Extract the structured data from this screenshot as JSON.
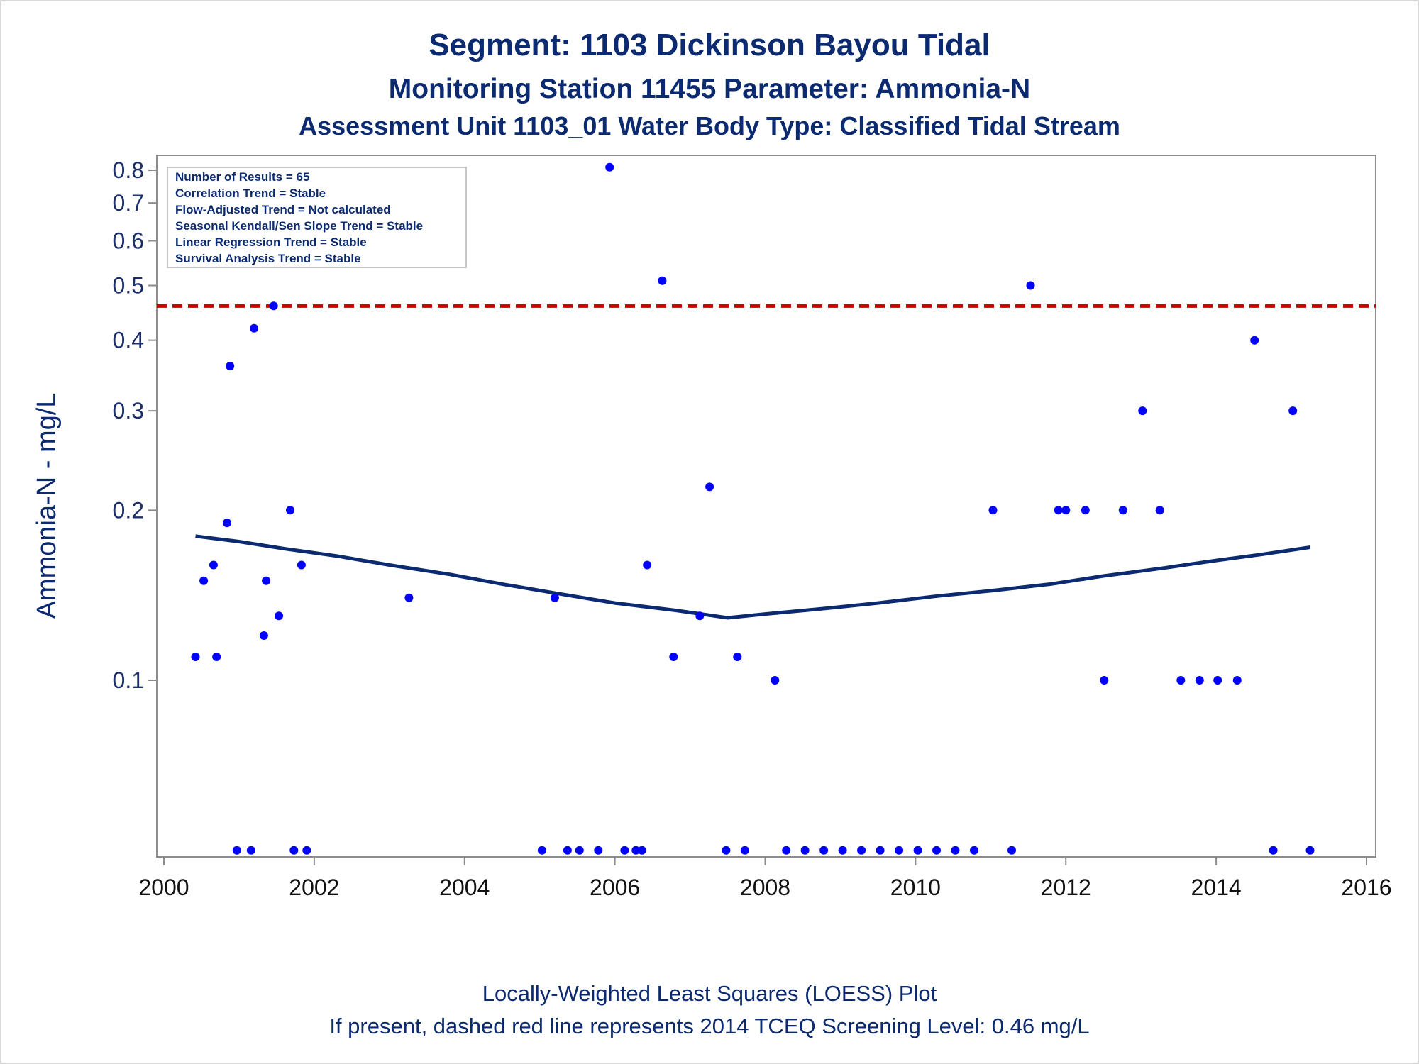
{
  "chart_data": {
    "type": "scatter",
    "title": "Segment: 1103  Dickinson Bayou Tidal",
    "subtitle": "Monitoring Station 11455 Parameter: Ammonia-N",
    "subtitle2": "Assessment Unit 1103_01   Water Body Type: Classified Tidal Stream",
    "ylabel": "Ammonia-N - mg/L",
    "y_scale": "log",
    "x_ticks": [
      "2000",
      "2002",
      "2004",
      "2006",
      "2008",
      "2010",
      "2012",
      "2014",
      "2016"
    ],
    "y_ticks": [
      "0.1",
      "0.2",
      "0.3",
      "0.4",
      "0.5",
      "0.6",
      "0.7",
      "0.8"
    ],
    "xlim": [
      2000,
      2016
    ],
    "ylim": [
      0.05,
      0.81
    ],
    "stats_box": [
      "Number of Results = 65",
      "Correlation Trend = Stable",
      "Flow-Adjusted Trend = Not calculated",
      "Seasonal Kendall/Sen Slope Trend = Stable",
      "Linear Regression Trend = Stable",
      "Survival Analysis Trend = Stable"
    ],
    "screening_level": 0.46,
    "footnote1": "Locally-Weighted Least Squares (LOESS) Plot",
    "footnote2": "If present, dashed red line represents 2014 TCEQ Screening Level: 0.46 mg/L",
    "colors": {
      "points": "#0000ff",
      "loess": "#0b2a6f",
      "screening": "#d00000",
      "text": "#0b2a6f"
    },
    "points": [
      {
        "x": 2000.42,
        "y": 0.11
      },
      {
        "x": 2000.53,
        "y": 0.15
      },
      {
        "x": 2000.66,
        "y": 0.16
      },
      {
        "x": 2000.7,
        "y": 0.11
      },
      {
        "x": 2000.84,
        "y": 0.19
      },
      {
        "x": 2000.88,
        "y": 0.36
      },
      {
        "x": 2000.97,
        "y": 0.05
      },
      {
        "x": 2001.16,
        "y": 0.05
      },
      {
        "x": 2001.2,
        "y": 0.42
      },
      {
        "x": 2001.33,
        "y": 0.12
      },
      {
        "x": 2001.36,
        "y": 0.15
      },
      {
        "x": 2001.46,
        "y": 0.46
      },
      {
        "x": 2001.53,
        "y": 0.13
      },
      {
        "x": 2001.68,
        "y": 0.2
      },
      {
        "x": 2001.73,
        "y": 0.05
      },
      {
        "x": 2001.83,
        "y": 0.16
      },
      {
        "x": 2001.9,
        "y": 0.05
      },
      {
        "x": 2003.26,
        "y": 0.14
      },
      {
        "x": 2005.03,
        "y": 0.05
      },
      {
        "x": 2005.2,
        "y": 0.14
      },
      {
        "x": 2005.37,
        "y": 0.05
      },
      {
        "x": 2005.53,
        "y": 0.05
      },
      {
        "x": 2005.78,
        "y": 0.05
      },
      {
        "x": 2005.93,
        "y": 0.81
      },
      {
        "x": 2006.13,
        "y": 0.05
      },
      {
        "x": 2006.28,
        "y": 0.05
      },
      {
        "x": 2006.36,
        "y": 0.05
      },
      {
        "x": 2006.43,
        "y": 0.16
      },
      {
        "x": 2006.63,
        "y": 0.51
      },
      {
        "x": 2006.78,
        "y": 0.11
      },
      {
        "x": 2007.13,
        "y": 0.13
      },
      {
        "x": 2007.26,
        "y": 0.22
      },
      {
        "x": 2007.48,
        "y": 0.05
      },
      {
        "x": 2007.63,
        "y": 0.11
      },
      {
        "x": 2007.73,
        "y": 0.05
      },
      {
        "x": 2008.13,
        "y": 0.1
      },
      {
        "x": 2008.28,
        "y": 0.05
      },
      {
        "x": 2008.53,
        "y": 0.05
      },
      {
        "x": 2008.78,
        "y": 0.05
      },
      {
        "x": 2009.03,
        "y": 0.05
      },
      {
        "x": 2009.28,
        "y": 0.05
      },
      {
        "x": 2009.53,
        "y": 0.05
      },
      {
        "x": 2009.78,
        "y": 0.05
      },
      {
        "x": 2010.03,
        "y": 0.05
      },
      {
        "x": 2010.28,
        "y": 0.05
      },
      {
        "x": 2010.53,
        "y": 0.05
      },
      {
        "x": 2010.78,
        "y": 0.05
      },
      {
        "x": 2011.03,
        "y": 0.2
      },
      {
        "x": 2011.28,
        "y": 0.05
      },
      {
        "x": 2011.53,
        "y": 0.5
      },
      {
        "x": 2011.9,
        "y": 0.2
      },
      {
        "x": 2012.0,
        "y": 0.2
      },
      {
        "x": 2012.26,
        "y": 0.2
      },
      {
        "x": 2012.51,
        "y": 0.1
      },
      {
        "x": 2012.76,
        "y": 0.2
      },
      {
        "x": 2013.02,
        "y": 0.3
      },
      {
        "x": 2013.25,
        "y": 0.2
      },
      {
        "x": 2013.53,
        "y": 0.1
      },
      {
        "x": 2013.78,
        "y": 0.1
      },
      {
        "x": 2014.02,
        "y": 0.1
      },
      {
        "x": 2014.28,
        "y": 0.1
      },
      {
        "x": 2014.51,
        "y": 0.4
      },
      {
        "x": 2014.76,
        "y": 0.05
      },
      {
        "x": 2015.02,
        "y": 0.3
      },
      {
        "x": 2015.25,
        "y": 0.05
      }
    ],
    "loess": [
      {
        "x": 2000.42,
        "y": 0.18
      },
      {
        "x": 2001.0,
        "y": 0.176
      },
      {
        "x": 2001.6,
        "y": 0.171
      },
      {
        "x": 2002.3,
        "y": 0.166
      },
      {
        "x": 2003.0,
        "y": 0.16
      },
      {
        "x": 2003.8,
        "y": 0.154
      },
      {
        "x": 2004.5,
        "y": 0.148
      },
      {
        "x": 2005.3,
        "y": 0.142
      },
      {
        "x": 2006.0,
        "y": 0.137
      },
      {
        "x": 2006.8,
        "y": 0.133
      },
      {
        "x": 2007.5,
        "y": 0.129
      },
      {
        "x": 2008.0,
        "y": 0.131
      },
      {
        "x": 2008.8,
        "y": 0.134
      },
      {
        "x": 2009.5,
        "y": 0.137
      },
      {
        "x": 2010.3,
        "y": 0.141
      },
      {
        "x": 2011.0,
        "y": 0.144
      },
      {
        "x": 2011.8,
        "y": 0.148
      },
      {
        "x": 2012.5,
        "y": 0.153
      },
      {
        "x": 2013.3,
        "y": 0.158
      },
      {
        "x": 2014.0,
        "y": 0.163
      },
      {
        "x": 2014.6,
        "y": 0.167
      },
      {
        "x": 2015.25,
        "y": 0.172
      }
    ]
  }
}
